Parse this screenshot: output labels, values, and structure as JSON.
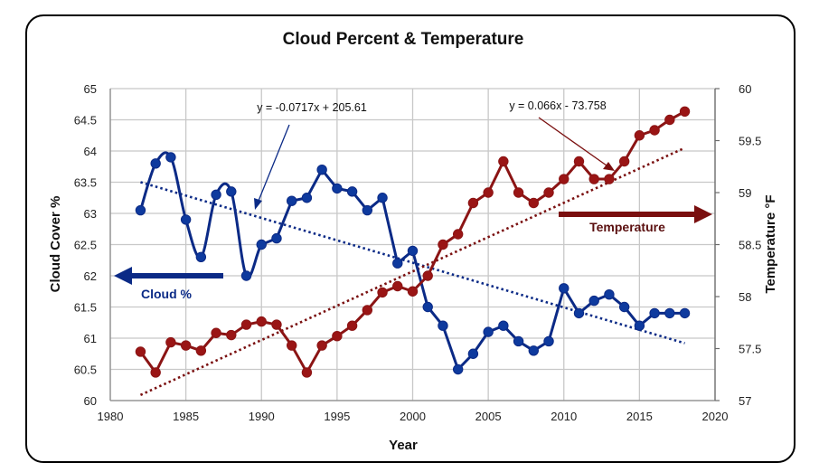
{
  "chart_data": {
    "type": "line",
    "title": "Cloud Percent & Temperature",
    "xlabel": "Year",
    "ylabel": "Cloud Cover %",
    "y2label": "Temperature °F",
    "xlim": [
      1980,
      2020
    ],
    "ylim": [
      60,
      65
    ],
    "y2lim": [
      57,
      60
    ],
    "xticks": [
      "1980",
      "1985",
      "1990",
      "1995",
      "2000",
      "2005",
      "2010",
      "2015",
      "2020"
    ],
    "yticks": [
      "60",
      "60.5",
      "61",
      "61.5",
      "62",
      "62.5",
      "63",
      "63.5",
      "64",
      "64.5",
      "65"
    ],
    "y2ticks": [
      "57",
      "57.5",
      "58",
      "58.5",
      "59",
      "59.5",
      "60"
    ],
    "grid": true,
    "x": [
      1982,
      1983,
      1984,
      1985,
      1986,
      1987,
      1988,
      1989,
      1990,
      1991,
      1992,
      1993,
      1994,
      1995,
      1996,
      1997,
      1998,
      1999,
      2000,
      2001,
      2002,
      2003,
      2004,
      2005,
      2006,
      2007,
      2008,
      2009,
      2010,
      2011,
      2012,
      2013,
      2014,
      2015,
      2016,
      2017,
      2018
    ],
    "series": [
      {
        "name": "Cloud %",
        "axis": "left",
        "color": "#0b2a86",
        "smooth_segment_years": [
          1982,
          1990
        ],
        "values": [
          63.05,
          63.8,
          63.9,
          62.9,
          62.3,
          63.3,
          63.35,
          62.0,
          62.5,
          62.6,
          63.2,
          63.25,
          63.7,
          63.4,
          63.35,
          63.05,
          63.25,
          62.2,
          62.4,
          61.5,
          61.2,
          60.5,
          60.75,
          61.1,
          61.2,
          60.95,
          60.8,
          60.95,
          61.8,
          61.4,
          61.6,
          61.7,
          61.5,
          61.2,
          61.4,
          61.4,
          61.4
        ],
        "trendline": {
          "slope": -0.0717,
          "intercept": 205.61,
          "equation": "y = -0.0717x + 205.61"
        }
      },
      {
        "name": "Temperature",
        "axis": "right",
        "color": "#8b1414",
        "values": [
          57.47,
          57.27,
          57.56,
          57.53,
          57.48,
          57.65,
          57.63,
          57.73,
          57.76,
          57.73,
          57.53,
          57.27,
          57.53,
          57.62,
          57.72,
          57.87,
          58.04,
          58.1,
          58.05,
          58.2,
          58.5,
          58.6,
          58.9,
          59.0,
          59.3,
          59.0,
          58.9,
          59.0,
          59.13,
          59.3,
          59.13,
          59.13,
          59.3,
          59.55,
          59.6,
          59.7,
          59.78
        ],
        "trendline": {
          "slope": 0.066,
          "intercept": -73.758,
          "equation": "y = 0.066x - 73.758"
        }
      }
    ],
    "annotations": [
      {
        "text": "Cloud %",
        "arrow": "left",
        "color": "#0b2a86"
      },
      {
        "text": "Temperature",
        "arrow": "right",
        "color": "#7a0f0f"
      }
    ]
  }
}
